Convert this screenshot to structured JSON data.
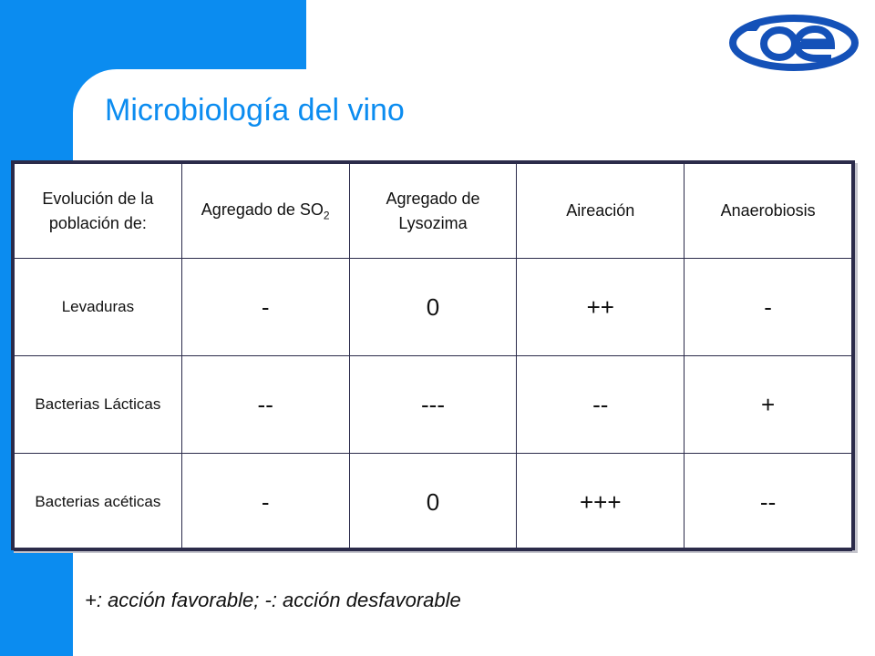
{
  "title": "Microbiología del vino",
  "logo": {
    "text": "oe",
    "color": "#1451b8"
  },
  "colors": {
    "accent": "#0b8cf0",
    "border": "#2b2b4a"
  },
  "table": {
    "header": {
      "col0": "Evolución de la población de:",
      "col1_main": "Agregado de SO",
      "col1_sub": "2",
      "col2": "Agregado de Lysozima",
      "col3": "Aireación",
      "col4": "Anaerobiosis"
    },
    "rows": [
      {
        "label": "Levaduras",
        "so2": "-",
        "lysozima": "0",
        "aireacion": "++",
        "anaerobiosis": "-"
      },
      {
        "label": "Bacterias Lácticas",
        "so2": "--",
        "lysozima": "---",
        "aireacion": "--",
        "anaerobiosis": "+"
      },
      {
        "label": "Bacterias acéticas",
        "so2": "-",
        "lysozima": "0",
        "aireacion": "+++",
        "anaerobiosis": "--"
      }
    ]
  },
  "footnote": "+: acción favorable; -: acción desfavorable"
}
